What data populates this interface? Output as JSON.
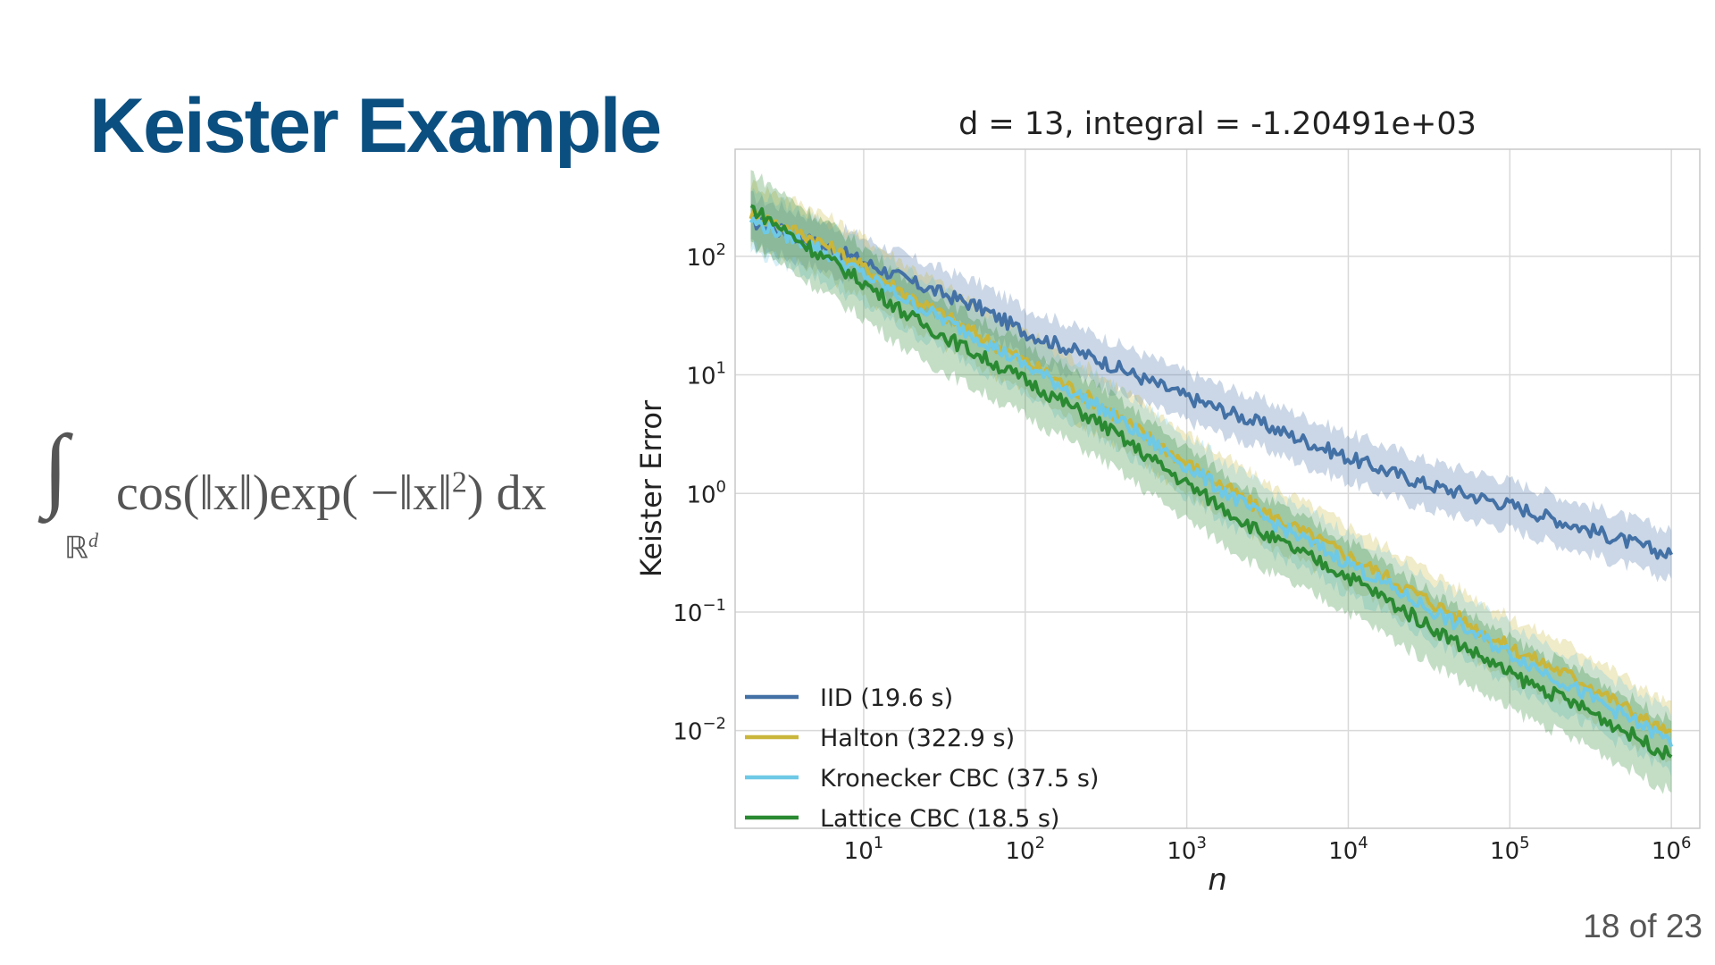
{
  "slide": {
    "title": "Keister Example",
    "formula_integrand": "cos(‖x‖)exp( −‖x‖",
    "formula_exponent": "2",
    "formula_tail": ") dx",
    "formula_domain": "ℝ",
    "formula_domain_sup": "d",
    "page_number": "18 of 23"
  },
  "chart_data": {
    "type": "line",
    "title": "d = 13, integral = -1.20491e+03",
    "xlabel": "n",
    "ylabel": "Keister Error",
    "xscale": "log",
    "yscale": "log",
    "xlim": [
      1.6,
      1500000
    ],
    "ylim": [
      0.0015,
      800
    ],
    "grid": true,
    "legend_position": "lower-left",
    "x_ticks": [
      {
        "value": 10,
        "base": "10",
        "exp": "1"
      },
      {
        "value": 100,
        "base": "10",
        "exp": "2"
      },
      {
        "value": 1000,
        "base": "10",
        "exp": "3"
      },
      {
        "value": 10000,
        "base": "10",
        "exp": "4"
      },
      {
        "value": 100000,
        "base": "10",
        "exp": "5"
      },
      {
        "value": 1000000,
        "base": "10",
        "exp": "6"
      }
    ],
    "y_ticks": [
      {
        "value": 100,
        "base": "10",
        "exp": "2"
      },
      {
        "value": 10,
        "base": "10",
        "exp": "1"
      },
      {
        "value": 1,
        "base": "10",
        "exp": "0"
      },
      {
        "value": 0.1,
        "base": "10",
        "exp": "−1"
      },
      {
        "value": 0.01,
        "base": "10",
        "exp": "−2"
      }
    ],
    "series": [
      {
        "name": "IID (19.6 s)",
        "color": "#4371a6",
        "x": [
          2,
          5,
          10,
          20,
          50,
          100,
          300,
          1000,
          3000,
          10000,
          30000,
          100000,
          300000,
          1000000
        ],
        "y": [
          200,
          130,
          90,
          60,
          38,
          23,
          13,
          6.5,
          3.8,
          2.0,
          1.2,
          0.8,
          0.5,
          0.3
        ],
        "band_factor": 1.6
      },
      {
        "name": "Halton (322.9 s)",
        "color": "#c9b63a",
        "x": [
          2,
          5,
          10,
          20,
          50,
          100,
          300,
          1000,
          3000,
          10000,
          30000,
          100000,
          300000,
          1000000
        ],
        "y": [
          230,
          140,
          80,
          45,
          22,
          13,
          5.5,
          1.8,
          0.7,
          0.3,
          0.13,
          0.05,
          0.025,
          0.009
        ],
        "band_factor": 1.8
      },
      {
        "name": "Kronecker CBC (37.5 s)",
        "color": "#6ec9e6",
        "x": [
          2,
          5,
          10,
          20,
          50,
          100,
          300,
          1000,
          3000,
          10000,
          30000,
          100000,
          300000,
          1000000
        ],
        "y": [
          200,
          120,
          70,
          40,
          21,
          12,
          5.2,
          1.7,
          0.62,
          0.26,
          0.11,
          0.045,
          0.02,
          0.008
        ],
        "band_factor": 1.8
      },
      {
        "name": "Lattice CBC (18.5 s)",
        "color": "#2a8a32",
        "x": [
          2,
          5,
          10,
          20,
          50,
          100,
          300,
          1000,
          3000,
          10000,
          30000,
          100000,
          300000,
          1000000
        ],
        "y": [
          260,
          110,
          60,
          30,
          15,
          9,
          3.8,
          1.2,
          0.45,
          0.2,
          0.08,
          0.03,
          0.015,
          0.006
        ],
        "band_factor": 2.0
      }
    ]
  }
}
